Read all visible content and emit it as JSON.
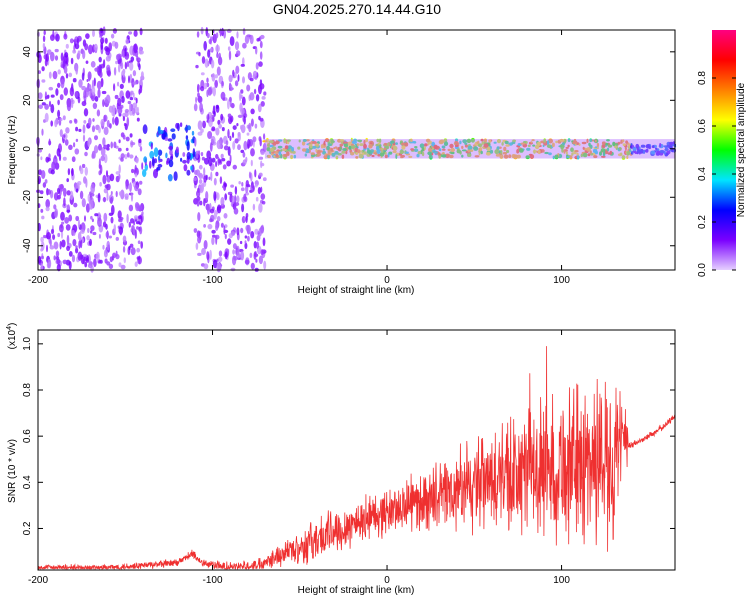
{
  "title": "GN04.2025.270.14.44.G10",
  "chart_data": [
    {
      "type": "heatmap",
      "name": "spectrogram",
      "xlabel": "Height of straight line (km)",
      "ylabel": "Frequency (Hz)",
      "xlim": [
        -200,
        165
      ],
      "ylim": [
        -50,
        49
      ],
      "xticks": [
        -200,
        -100,
        0,
        100
      ],
      "xtick_labels": [
        "-200",
        "-100",
        "0",
        "100"
      ],
      "yticks": [
        -40,
        -20,
        0,
        20,
        40
      ],
      "ytick_labels": [
        "-40",
        "-20",
        "0",
        "20",
        "40"
      ],
      "colorbar": {
        "label": "Normalized spectral amplitude",
        "range": [
          0,
          1
        ],
        "ticks": [
          0.0,
          0.2,
          0.4,
          0.6,
          0.8
        ],
        "tick_labels": [
          "0.0",
          "0.2",
          "0.4",
          "0.6",
          "0.8"
        ],
        "colors": [
          "#e6d0ff",
          "#7a00ff",
          "#0000ff",
          "#00e5ff",
          "#00ff00",
          "#ffff00",
          "#ff7f00",
          "#ff0000",
          "#ff0080"
        ]
      },
      "features": [
        {
          "desc": "broadband noise",
          "x_range": [
            -200,
            -140
          ],
          "freq_range": [
            -50,
            49
          ],
          "amplitude": 0.1
        },
        {
          "desc": "noise cluster",
          "x_range": [
            -140,
            -110
          ],
          "freq_range": [
            -12,
            10
          ],
          "amplitude": 0.25
        },
        {
          "desc": "broadband noise",
          "x_range": [
            -110,
            -70
          ],
          "freq_range": [
            -50,
            49
          ],
          "amplitude": 0.1
        },
        {
          "desc": "narrow band near 0 Hz",
          "x_range": [
            -70,
            140
          ],
          "freq_range": [
            -3,
            3
          ],
          "amplitude": 0.7
        },
        {
          "desc": "band continuation",
          "x_range": [
            140,
            165
          ],
          "freq_range": [
            -2,
            2
          ],
          "amplitude": 0.3
        }
      ]
    },
    {
      "type": "line",
      "name": "snr",
      "xlabel": "Height of straight line (km)",
      "ylabel": "SNR (10 * v/v)",
      "y_scale_label": "(x10",
      "y_scale_exponent": "4",
      "xlim": [
        -200,
        165
      ],
      "ylim": [
        0.02,
        1.06
      ],
      "xticks": [
        -200,
        -100,
        0,
        100
      ],
      "xtick_labels": [
        "-200",
        "-100",
        "0",
        "100"
      ],
      "yticks": [
        0.2,
        0.4,
        0.6,
        0.8,
        1.0
      ],
      "ytick_labels": [
        "0.2",
        "0.4",
        "0.6",
        "0.8",
        "1.0"
      ],
      "color": "#ef3030",
      "series": [
        {
          "name": "SNR",
          "x": [
            -200,
            -180,
            -160,
            -140,
            -120,
            -112,
            -105,
            -90,
            -75,
            -70,
            -60,
            -50,
            -40,
            -30,
            -20,
            -10,
            0,
            10,
            20,
            30,
            40,
            50,
            60,
            70,
            80,
            90,
            100,
            110,
            120,
            130,
            138,
            140,
            150,
            160,
            165
          ],
          "y": [
            0.03,
            0.03,
            0.03,
            0.04,
            0.05,
            0.09,
            0.05,
            0.03,
            0.04,
            0.06,
            0.09,
            0.12,
            0.15,
            0.19,
            0.22,
            0.25,
            0.27,
            0.3,
            0.32,
            0.34,
            0.36,
            0.38,
            0.4,
            0.42,
            0.44,
            0.46,
            0.47,
            0.48,
            0.5,
            0.52,
            0.56,
            0.56,
            0.6,
            0.65,
            0.69
          ]
        }
      ],
      "envelope": {
        "x": [
          -200,
          -120,
          -75,
          -60,
          -40,
          -20,
          0,
          20,
          40,
          60,
          80,
          100,
          120,
          130,
          138
        ],
        "spread": [
          0.01,
          0.015,
          0.02,
          0.04,
          0.08,
          0.08,
          0.08,
          0.1,
          0.14,
          0.18,
          0.22,
          0.26,
          0.3,
          0.3,
          0.1
        ]
      }
    }
  ]
}
